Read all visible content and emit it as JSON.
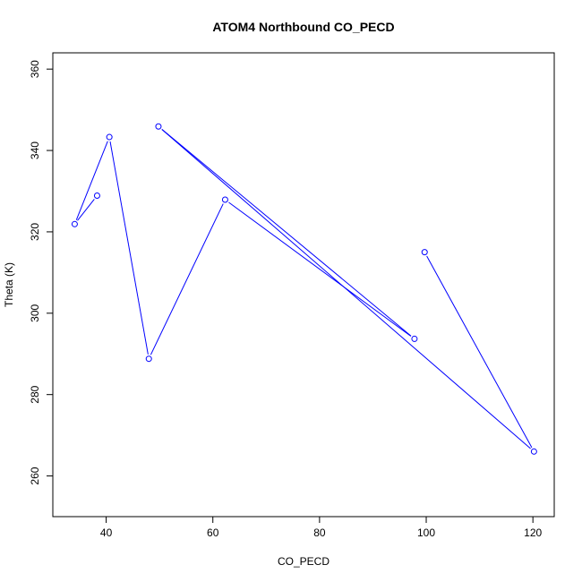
{
  "chart_data": {
    "type": "line",
    "title": "ATOM4 Northbound CO_PECD",
    "xlabel": "CO_PECD",
    "ylabel": "Theta (K)",
    "xlim": [
      30,
      124
    ],
    "ylim": [
      250,
      364
    ],
    "xticks": [
      40,
      60,
      80,
      100,
      120
    ],
    "yticks": [
      260,
      280,
      300,
      320,
      340,
      360
    ],
    "grid": false,
    "series": [
      {
        "color": "#0000ff",
        "x": [
          38.3,
          34.1,
          40.6,
          48.0,
          62.3,
          97.8,
          49.8,
          120.2,
          99.7
        ],
        "y": [
          328.9,
          321.9,
          343.3,
          288.8,
          327.9,
          293.7,
          345.9,
          266.0,
          315.0
        ]
      }
    ]
  }
}
